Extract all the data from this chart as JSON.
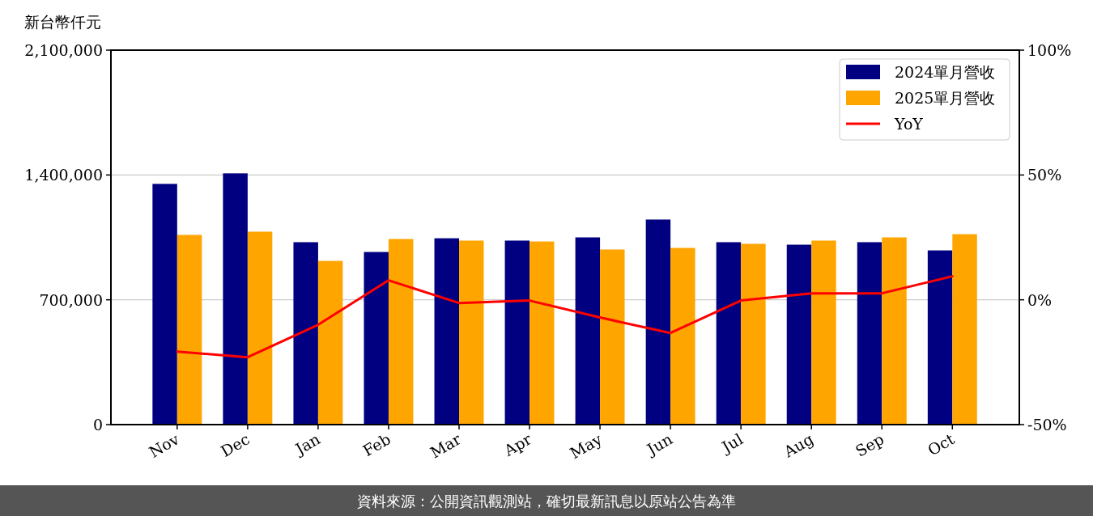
{
  "chart_data": {
    "type": "bar",
    "ylabel": "新台幣仟元",
    "categories": [
      "Nov",
      "Dec",
      "Jan",
      "Feb",
      "Mar",
      "Apr",
      "May",
      "Jun",
      "Jul",
      "Aug",
      "Sep",
      "Oct"
    ],
    "series": [
      {
        "name": "2024單月營收",
        "color": "#000080",
        "values": [
          1350000,
          1409000,
          1023000,
          968000,
          1045000,
          1032000,
          1050000,
          1150000,
          1023000,
          1009000,
          1023000,
          977000
        ]
      },
      {
        "name": "2025單月營收",
        "color": "#ffa500",
        "values": [
          1064000,
          1082000,
          918000,
          1041000,
          1032000,
          1027000,
          982000,
          991000,
          1014000,
          1032000,
          1050000,
          1068000
        ]
      },
      {
        "name": "YoY",
        "type": "line",
        "axis": "y2",
        "color": "#ff0000",
        "values": [
          -20.8,
          -23,
          -10,
          7.8,
          -1.3,
          -0.3,
          -7.1,
          -13.3,
          -0.3,
          2.6,
          2.6,
          9.4
        ]
      }
    ],
    "ylim": [
      0,
      2100000
    ],
    "yticks": [
      0,
      {
        "value": 700000,
        "label": "700,000"
      },
      {
        "value": 1400000,
        "label": "1,400,000"
      },
      {
        "value": 2100000,
        "label": "2,100,000"
      }
    ],
    "y2lim": [
      -50,
      100
    ],
    "y2ticks": [
      {
        "value": -50,
        "label": "-50%"
      },
      {
        "value": 0,
        "label": "0%"
      },
      {
        "value": 50,
        "label": "50%"
      },
      {
        "value": 100,
        "label": "100%"
      }
    ],
    "grid": "y",
    "legend": "top right",
    "annotations": [
      "資料來源：公開資訊觀測站，確切最新訊息以原站公告為準"
    ]
  }
}
